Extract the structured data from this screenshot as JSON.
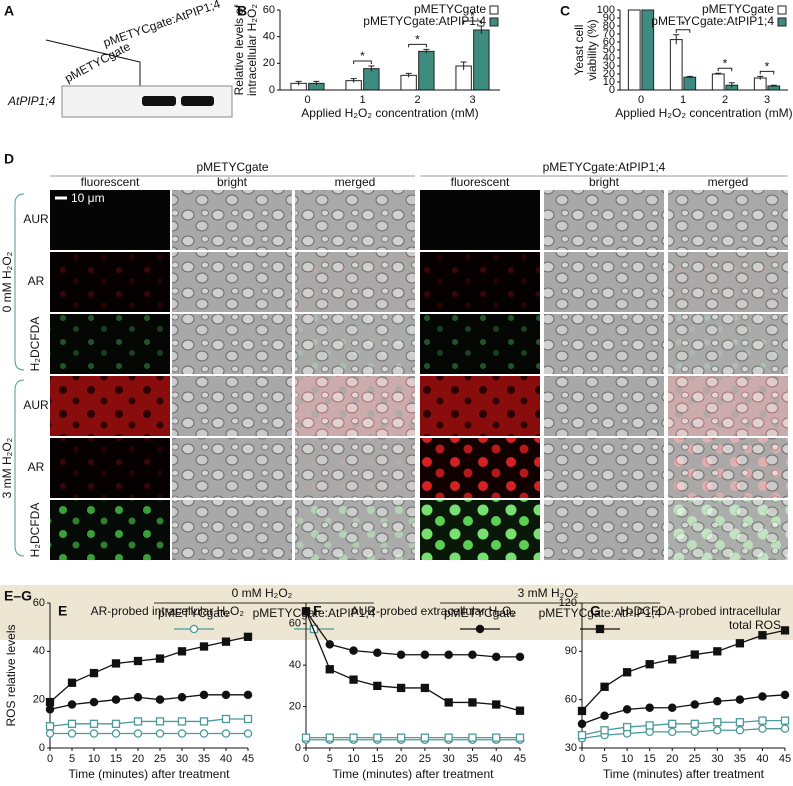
{
  "panel_a": {
    "label": "A",
    "lanes": [
      "pMETYCgate",
      "pMETYCgate:AtPIP1;4"
    ],
    "row_label": "AtPIP1;4"
  },
  "panel_d": {
    "label": "D",
    "scale_bar": "10 μm",
    "strains": [
      "pMETYCgate",
      "pMETYCgate:AtPIP1;4"
    ],
    "channels": [
      "fluorescent",
      "bright",
      "merged"
    ],
    "conditions": [
      {
        "label": "0 mM H₂O₂",
        "probes": [
          "AUR",
          "AR",
          "H₂DCFDA"
        ]
      },
      {
        "label": "3 mM H₂O₂",
        "probes": [
          "AUR",
          "AR",
          "H₂DCFDA"
        ]
      }
    ]
  },
  "legend_eg": {
    "label": "E–G",
    "groups": [
      {
        "title": "0 mM H₂O₂",
        "items": [
          {
            "name": "pMETYCgate",
            "color": "#4a9a9a",
            "marker": "circle",
            "filled": false
          },
          {
            "name": "pMETYCgate:AtPIP1;4",
            "color": "#4a9a9a",
            "marker": "square",
            "filled": false
          }
        ]
      },
      {
        "title": "3 mM H₂O₂",
        "items": [
          {
            "name": "pMETYCgate",
            "color": "#111111",
            "marker": "circle",
            "filled": true
          },
          {
            "name": "pMETYCgate:AtPIP1;4",
            "color": "#111111",
            "marker": "square",
            "filled": true
          }
        ]
      }
    ]
  },
  "chart_data": [
    {
      "type": "bar",
      "label": "B",
      "ylabel": [
        "Relative levels of",
        "intracellular H₂O₂"
      ],
      "xlabel": "Applied H₂O₂ concentration (mM)",
      "categories": [
        "0",
        "1",
        "2",
        "3"
      ],
      "ylim": [
        0,
        60
      ],
      "yticks": [
        0,
        20,
        40,
        60
      ],
      "legend": "top-right",
      "significance": [
        null,
        "*",
        "*",
        "*"
      ],
      "series": [
        {
          "name": "pMETYCgate",
          "color": "#ffffff",
          "values": [
            5,
            7,
            11,
            18
          ],
          "errors": [
            1.5,
            1.5,
            1.5,
            3
          ]
        },
        {
          "name": "pMETYCgate:AtPIP1;4",
          "color": "#3e8c80",
          "values": [
            5,
            16,
            29,
            45
          ],
          "errors": [
            1.5,
            2,
            1.5,
            3
          ]
        }
      ]
    },
    {
      "type": "bar",
      "label": "C",
      "ylabel": [
        "Yeast cell",
        "viability (%)"
      ],
      "xlabel": "Applied H₂O₂ concentration (mM)",
      "categories": [
        "0",
        "1",
        "2",
        "3"
      ],
      "ylim": [
        0,
        100
      ],
      "yticks": [
        0,
        10,
        20,
        30,
        40,
        50,
        60,
        70,
        80,
        90,
        100
      ],
      "legend": "top-right",
      "significance": [
        null,
        "*",
        "*",
        "*"
      ],
      "series": [
        {
          "name": "pMETYCgate",
          "color": "#ffffff",
          "values": [
            100,
            63,
            20,
            15
          ],
          "errors": [
            0,
            6,
            1,
            2
          ]
        },
        {
          "name": "pMETYCgate:AtPIP1;4",
          "color": "#3e8c80",
          "values": [
            100,
            16,
            6,
            5
          ],
          "errors": [
            0,
            1,
            3,
            1
          ]
        }
      ]
    },
    {
      "type": "line",
      "label": "E",
      "title": [
        "AR-probed intracellular H₂O₂"
      ],
      "ylabel": [
        "ROS relative levels"
      ],
      "xlabel": "Time (minutes) after treatment",
      "x": [
        0,
        5,
        10,
        15,
        20,
        25,
        30,
        35,
        40,
        45
      ],
      "xlim": [
        0,
        45
      ],
      "xticks": [
        0,
        5,
        10,
        15,
        20,
        25,
        30,
        35,
        40,
        45
      ],
      "ylim": [
        0,
        60
      ],
      "yticks": [
        0,
        20,
        40,
        60
      ],
      "series": [
        {
          "color": "#4a9a9a",
          "marker": "circle",
          "filled": false,
          "values": [
            6,
            6,
            6,
            6,
            6,
            6,
            6,
            6,
            6,
            6
          ]
        },
        {
          "color": "#4a9a9a",
          "marker": "square",
          "filled": false,
          "values": [
            9,
            10,
            10,
            10,
            11,
            11,
            11,
            11,
            12,
            12
          ]
        },
        {
          "color": "#111111",
          "marker": "circle",
          "filled": true,
          "values": [
            16,
            18,
            19,
            20,
            21,
            20,
            21,
            22,
            22,
            22
          ]
        },
        {
          "color": "#111111",
          "marker": "square",
          "filled": true,
          "values": [
            19,
            27,
            31,
            35,
            36,
            37,
            40,
            42,
            44,
            46
          ]
        }
      ]
    },
    {
      "type": "line",
      "label": "F",
      "title": [
        "AUR-probed extracellular H₂O₂"
      ],
      "xlabel": "Time (minutes) after treatment",
      "x": [
        0,
        5,
        10,
        15,
        20,
        25,
        30,
        35,
        40,
        45
      ],
      "xlim": [
        0,
        45
      ],
      "xticks": [
        0,
        5,
        10,
        15,
        20,
        25,
        30,
        35,
        40,
        45
      ],
      "ylim": [
        0,
        70
      ],
      "yticks": [
        0,
        20,
        40,
        60
      ],
      "series": [
        {
          "color": "#4a9a9a",
          "marker": "circle",
          "filled": false,
          "values": [
            4,
            4,
            4,
            4,
            4,
            4,
            4,
            4,
            4,
            4
          ]
        },
        {
          "color": "#4a9a9a",
          "marker": "square",
          "filled": false,
          "values": [
            5,
            5,
            5,
            5,
            5,
            5,
            5,
            5,
            5,
            5
          ]
        },
        {
          "color": "#111111",
          "marker": "circle",
          "filled": true,
          "values": [
            66,
            50,
            47,
            46,
            45,
            45,
            45,
            45,
            44,
            44
          ]
        },
        {
          "color": "#111111",
          "marker": "square",
          "filled": true,
          "values": [
            66,
            38,
            33,
            30,
            29,
            29,
            22,
            22,
            21,
            18
          ]
        }
      ]
    },
    {
      "type": "line",
      "label": "G",
      "title": [
        "H₂DCFDA-probed intracellular",
        "total ROS"
      ],
      "xlabel": "Time (minutes) after treatment",
      "x": [
        0,
        5,
        10,
        15,
        20,
        25,
        30,
        35,
        40,
        45
      ],
      "xlim": [
        0,
        45
      ],
      "xticks": [
        0,
        5,
        10,
        15,
        20,
        25,
        30,
        35,
        40,
        45
      ],
      "ylim": [
        30,
        120
      ],
      "yticks": [
        30,
        60,
        90,
        120
      ],
      "series": [
        {
          "color": "#4a9a9a",
          "marker": "circle",
          "filled": false,
          "values": [
            36,
            38,
            39,
            40,
            40,
            40,
            41,
            41,
            42,
            42
          ]
        },
        {
          "color": "#4a9a9a",
          "marker": "square",
          "filled": false,
          "values": [
            38,
            41,
            43,
            44,
            45,
            45,
            46,
            46,
            47,
            47
          ]
        },
        {
          "color": "#111111",
          "marker": "circle",
          "filled": true,
          "values": [
            45,
            50,
            54,
            55,
            55,
            57,
            59,
            60,
            62,
            63
          ]
        },
        {
          "color": "#111111",
          "marker": "square",
          "filled": true,
          "values": [
            53,
            68,
            77,
            82,
            85,
            88,
            90,
            95,
            100,
            103
          ]
        }
      ]
    }
  ]
}
